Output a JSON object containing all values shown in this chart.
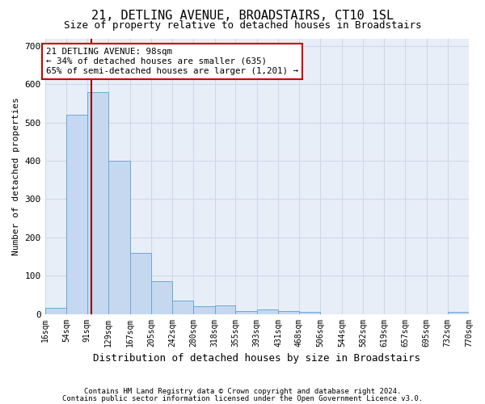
{
  "title1": "21, DETLING AVENUE, BROADSTAIRS, CT10 1SL",
  "title2": "Size of property relative to detached houses in Broadstairs",
  "xlabel": "Distribution of detached houses by size in Broadstairs",
  "ylabel": "Number of detached properties",
  "footnote1": "Contains HM Land Registry data © Crown copyright and database right 2024.",
  "footnote2": "Contains public sector information licensed under the Open Government Licence v3.0.",
  "bin_edges": [
    16,
    54,
    91,
    129,
    167,
    205,
    242,
    280,
    318,
    355,
    393,
    431,
    468,
    506,
    544,
    582,
    619,
    657,
    695,
    732,
    770
  ],
  "bar_heights": [
    15,
    520,
    580,
    400,
    160,
    85,
    35,
    20,
    22,
    8,
    12,
    8,
    5,
    0,
    0,
    0,
    0,
    0,
    0,
    5
  ],
  "bar_color": "#c5d8f0",
  "bar_edge_color": "#6aaad4",
  "property_size": 98,
  "vline_color": "#990000",
  "annotation_text": "21 DETLING AVENUE: 98sqm\n← 34% of detached houses are smaller (635)\n65% of semi-detached houses are larger (1,201) →",
  "annotation_box_color": "#ffffff",
  "annotation_box_edge": "#cc0000",
  "ylim": [
    0,
    720
  ],
  "yticks": [
    0,
    100,
    200,
    300,
    400,
    500,
    600,
    700
  ],
  "grid_color": "#d0d8e8",
  "plot_bg_color": "#ffffff",
  "ax_bg_color": "#e8eef8",
  "title1_fontsize": 11,
  "title2_fontsize": 9,
  "ylabel_fontsize": 8,
  "xlabel_fontsize": 9,
  "tick_fontsize": 7,
  "footnote_fontsize": 6.5
}
